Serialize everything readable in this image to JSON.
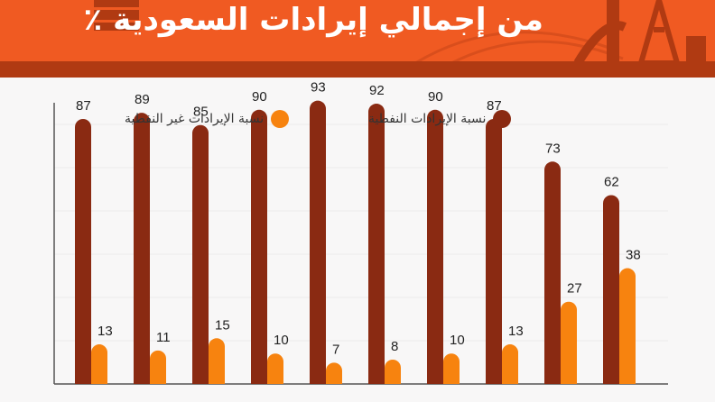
{
  "header": {
    "title": "من إجمالي إيرادات السعودية ٪"
  },
  "legend": {
    "oil_label": "نسبة الإيرادات النفطية",
    "nonoil_label": "نسبة الإيرادات غير  النفطية"
  },
  "colors": {
    "banner": "#f05a22",
    "banner_strip": "#b03a12",
    "oil": "#8a2a12",
    "nonoil": "#f7830f"
  },
  "chart_data": {
    "type": "bar",
    "categories": [
      "",
      "",
      "",
      "",
      "",
      "",
      "",
      "",
      "",
      ""
    ],
    "series": [
      {
        "name": "نسبة الإيرادات النفطية",
        "values": [
          87,
          89,
          85,
          90,
          93,
          92,
          90,
          87,
          73,
          62
        ]
      },
      {
        "name": "نسبة الإيرادات غير  النفطية",
        "values": [
          13,
          11,
          15,
          10,
          7,
          8,
          10,
          13,
          27,
          38
        ]
      }
    ],
    "title": "من إجمالي إيرادات السعودية ٪",
    "xlabel": "",
    "ylabel": "",
    "ylim": [
      0,
      100
    ],
    "grid": true,
    "legend_position": "top"
  }
}
